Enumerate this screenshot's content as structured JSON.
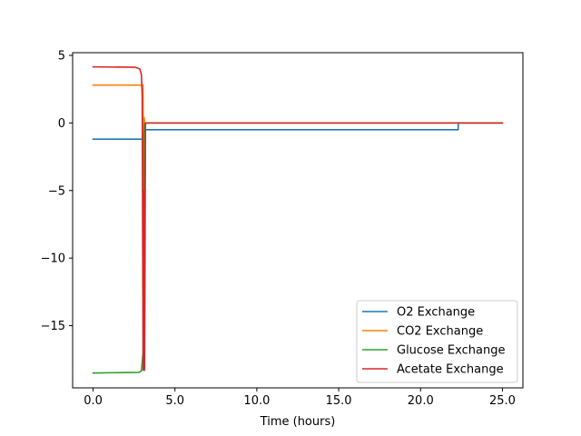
{
  "chart_data": {
    "type": "line",
    "title": "",
    "xlabel": "Time (hours)",
    "ylabel": "",
    "xlim": [
      -1.25,
      26.25
    ],
    "ylim": [
      -19.6,
      5.2
    ],
    "xticks": [
      0,
      5,
      10,
      15,
      20,
      25
    ],
    "xtick_labels": [
      "0.0",
      "5.0",
      "10.0",
      "15.0",
      "20.0",
      "25.0"
    ],
    "yticks": [
      5,
      0,
      -5,
      -10,
      -15
    ],
    "ytick_labels": [
      "5",
      "0",
      "−5",
      "−10",
      "−15"
    ],
    "grid": false,
    "legend_position": "lower-right",
    "series": [
      {
        "name": "O2 Exchange",
        "color": "#1f77b4",
        "x": [
          0,
          3.0,
          3.05,
          3.1,
          3.15,
          3.2,
          3.25,
          22.3,
          22.3,
          25.0
        ],
        "y": [
          -1.2,
          -1.2,
          -1.2,
          -18.3,
          -18.3,
          -0.5,
          -0.5,
          -0.5,
          0,
          0
        ]
      },
      {
        "name": "CO2 Exchange",
        "color": "#ff7f0e",
        "x": [
          0,
          3.0,
          3.05,
          3.1,
          3.12,
          3.15,
          3.2,
          25.0
        ],
        "y": [
          2.8,
          2.8,
          2.8,
          -18.3,
          0.4,
          0.05,
          0,
          0
        ]
      },
      {
        "name": "Glucose Exchange",
        "color": "#2ca02c",
        "x": [
          0,
          2.8,
          2.95,
          3.05,
          3.1,
          3.15,
          25.0
        ],
        "y": [
          -18.5,
          -18.45,
          -18.35,
          -17.0,
          -1.0,
          0,
          0
        ]
      },
      {
        "name": "Acetate Exchange",
        "color": "#d62728",
        "x": [
          0,
          2.6,
          2.85,
          2.95,
          3.0,
          3.03,
          3.06,
          3.1,
          3.13,
          3.16,
          3.2,
          3.25,
          25.0
        ],
        "y": [
          4.15,
          4.12,
          4.0,
          3.6,
          2.0,
          -10.0,
          -18.3,
          -5.0,
          -18.2,
          -5.5,
          0,
          0,
          0
        ]
      }
    ]
  }
}
